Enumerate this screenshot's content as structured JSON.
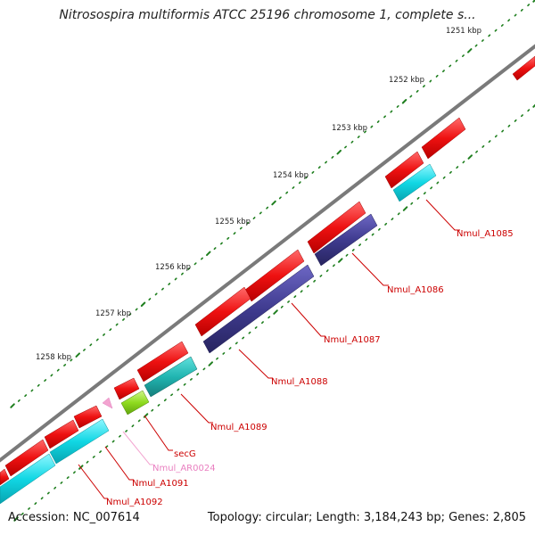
{
  "title": "Nitrosospira multiformis ATCC 25196 chromosome 1, complete s...",
  "accession": "Accession: NC_007614",
  "topology": "Topology: circular; Length: 3,184,243 bp; Genes: 2,805",
  "colors": {
    "backbone": "#808080",
    "tick": "#1f7f1f",
    "gene_forward": "#ee1111",
    "gene_reverse_cyan": "#11d7e4",
    "gene_reverse_purple": "#3f3b8f",
    "gene_teal": "#21b5b1",
    "gene_green": "#8fdb1f",
    "pseudogene": "#f3a4d0",
    "label_red": "#cc0000",
    "label_pink": "#e97fc0"
  },
  "scale": [
    "1251 kbp",
    "1252 kbp",
    "1253 kbp",
    "1254 kbp",
    "1255 kbp",
    "1256 kbp",
    "1257 kbp",
    "1258 kbp"
  ],
  "gene_labels": [
    "Nmul_A1085",
    "Nmul_A1086",
    "Nmul_A1087",
    "Nmul_A1088",
    "Nmul_A1089",
    "secG",
    "Nmul_AR0024",
    "Nmul_A1091",
    "Nmul_A1092"
  ]
}
